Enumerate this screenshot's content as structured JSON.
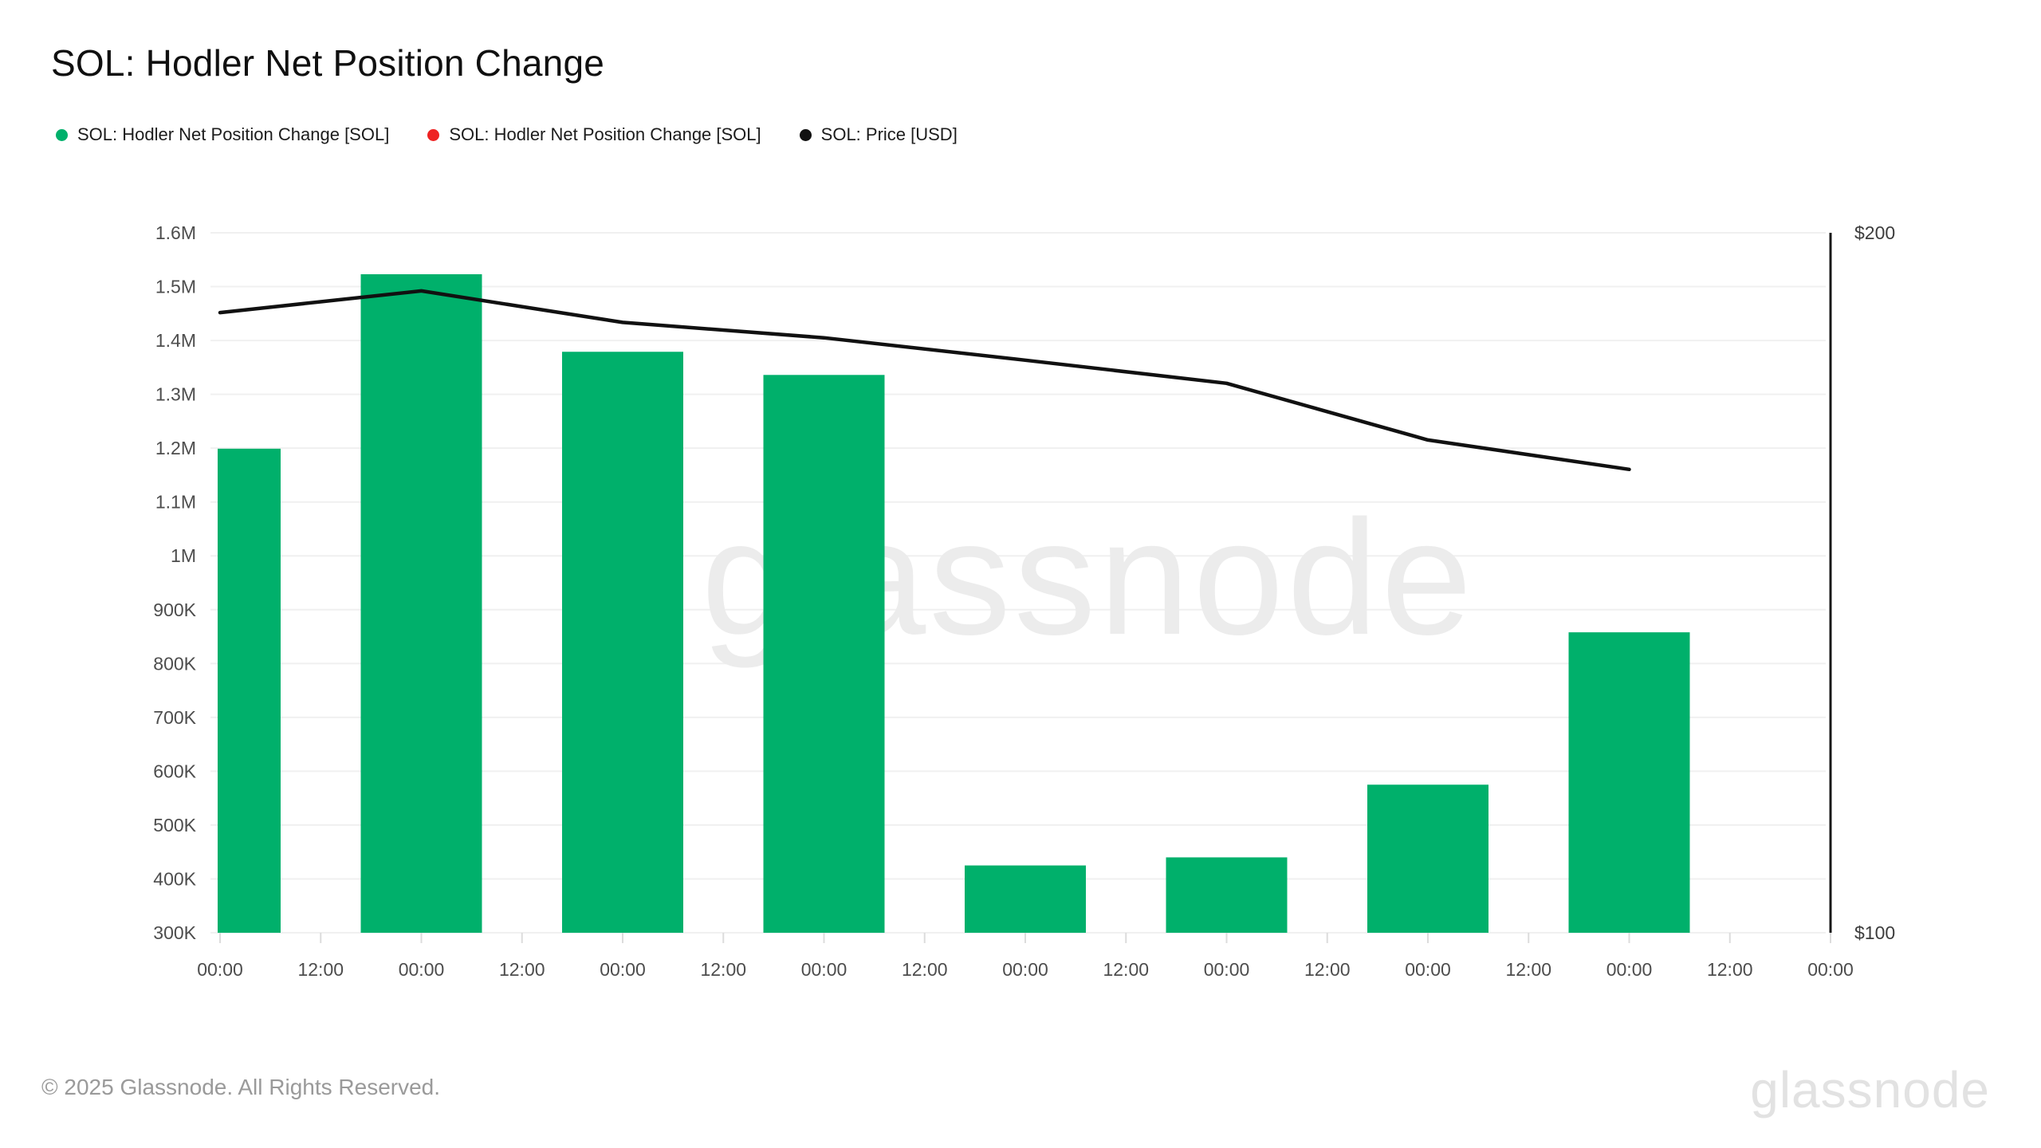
{
  "page": {
    "background": "#ffffff"
  },
  "header": {
    "title": "SOL: Hodler Net Position Change"
  },
  "legend": {
    "items": [
      {
        "label": "SOL: Hodler Net Position Change [SOL]",
        "color": "#00b06b"
      },
      {
        "label": "SOL: Hodler Net Position Change [SOL]",
        "color": "#ee2222"
      },
      {
        "label": "SOL: Price [USD]",
        "color": "#111111"
      }
    ]
  },
  "watermark": {
    "text": "glassnode",
    "color": "#ececec"
  },
  "footer": {
    "copyright": "© 2025 Glassnode. All Rights Reserved.",
    "logo_text": "glassnode"
  },
  "chart_data": {
    "type": "bar",
    "title": "SOL: Hodler Net Position Change",
    "grid": "horizontal",
    "legend_position": "top-left",
    "x_tick_labels": [
      "00:00",
      "12:00",
      "00:00",
      "12:00",
      "00:00",
      "12:00",
      "00:00",
      "12:00",
      "00:00",
      "12:00",
      "00:00",
      "12:00",
      "00:00",
      "12:00",
      "00:00",
      "12:00",
      "00:00"
    ],
    "left_axis": {
      "units": "SOL",
      "min": 300000,
      "max": 1600000,
      "tick_values": [
        1600000,
        1500000,
        1400000,
        1300000,
        1200000,
        1100000,
        1000000,
        900000,
        800000,
        700000,
        600000,
        500000,
        400000,
        300000
      ],
      "tick_labels": [
        "1.6M",
        "1.5M",
        "1.4M",
        "1.3M",
        "1.2M",
        "1.1M",
        "1M",
        "900K",
        "800K",
        "700K",
        "600K",
        "500K",
        "400K",
        "300K"
      ]
    },
    "right_axis": {
      "units": "USD",
      "min": 100,
      "max": 200,
      "tick_values": [
        200,
        100
      ],
      "tick_labels": [
        "$200",
        "$100"
      ]
    },
    "series": [
      {
        "name": "SOL: Hodler Net Position Change [SOL]",
        "type": "bar",
        "axis": "left",
        "color": "#00b06b",
        "x_tick_index": [
          0,
          2,
          4,
          6,
          8,
          10,
          12,
          14
        ],
        "values": [
          1199000,
          1523000,
          1379000,
          1336000,
          425000,
          440000,
          575000,
          858000
        ]
      },
      {
        "name": "SOL: Hodler Net Position Change [SOL]",
        "type": "bar",
        "axis": "left",
        "color": "#ee2222",
        "x_tick_index": [],
        "values": []
      },
      {
        "name": "SOL: Price [USD]",
        "type": "line",
        "axis": "right",
        "color": "#111111",
        "x_tick_index": [
          0,
          2,
          4,
          6,
          8,
          10,
          12,
          14
        ],
        "values": [
          188.6,
          191.7,
          187.2,
          185.0,
          181.8,
          178.5,
          170.4,
          166.2
        ]
      }
    ]
  }
}
